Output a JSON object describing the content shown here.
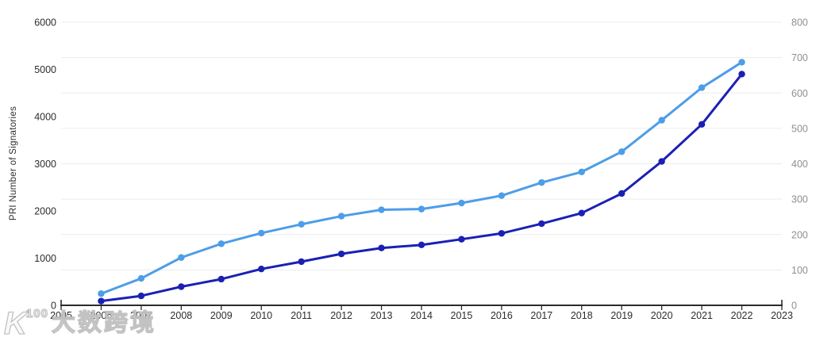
{
  "page": {
    "background": "#ffffff"
  },
  "chart_data": {
    "type": "line",
    "title": "",
    "ylabel_left": "PRI Number of Signatories",
    "ylabel_right": "",
    "x": [
      2006,
      2007,
      2008,
      2009,
      2010,
      2011,
      2012,
      2013,
      2014,
      2015,
      2016,
      2017,
      2018,
      2019,
      2020,
      2021,
      2022
    ],
    "x_axis": {
      "min": 2005,
      "max": 2023,
      "tick_years": [
        2005,
        2006,
        2007,
        2008,
        2009,
        2010,
        2011,
        2012,
        2013,
        2014,
        2015,
        2016,
        2017,
        2018,
        2019,
        2020,
        2021,
        2022,
        2023
      ]
    },
    "left_axis": {
      "label": "PRI Number of Signatories",
      "min": 0,
      "max": 6000,
      "ticks": [
        0,
        1000,
        2000,
        3000,
        4000,
        5000,
        6000
      ]
    },
    "right_axis": {
      "label": "",
      "min": 0,
      "max": 800,
      "ticks": [
        0,
        100,
        200,
        300,
        400,
        500,
        600,
        700,
        800
      ]
    },
    "grid": {
      "horizontal": true,
      "aligned_to": "right-axis-100s",
      "color": "#ececec"
    },
    "legend": {
      "visible": false
    },
    "series": [
      {
        "name": "light-blue-series",
        "axis": "right",
        "color": "#4D9DE8",
        "values": [
          33,
          76,
          135,
          174,
          204,
          229,
          252,
          270,
          272,
          289,
          310,
          347,
          377,
          434,
          523,
          615,
          687
        ]
      },
      {
        "name": "dark-blue-series",
        "axis": "left",
        "color": "#1B20B4",
        "values": [
          90,
          200,
          395,
          555,
          770,
          925,
          1090,
          1215,
          1280,
          1400,
          1525,
          1730,
          1955,
          2370,
          3050,
          3835,
          4900
        ]
      }
    ]
  },
  "watermark": {
    "logo_main": "K",
    "logo_sup": "100",
    "text": "大数跨境"
  },
  "colors": {
    "grid": "#ececec",
    "axis": "#2b2b2b",
    "tick_label_dark": "#2d2d2d",
    "tick_label_gray": "#8f8f8f",
    "series_light_blue": "#4D9DE8",
    "series_dark_blue": "#1B20B4"
  }
}
